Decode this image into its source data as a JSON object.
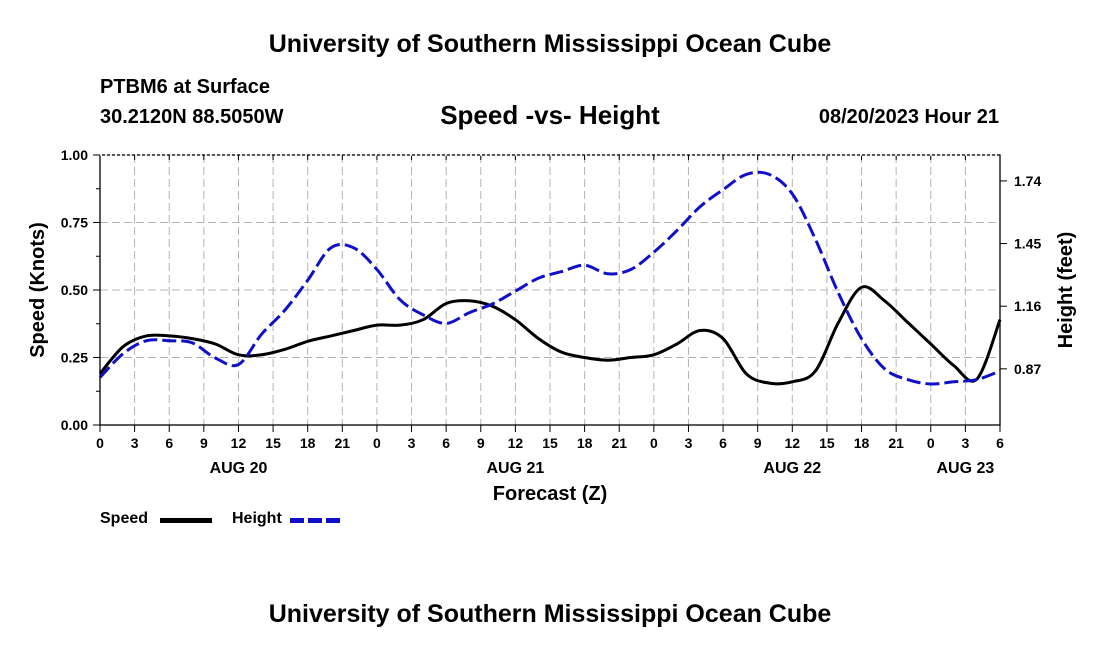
{
  "header": {
    "title": "University of Southern Mississippi Ocean Cube",
    "footer_title": "University of Southern Mississippi Ocean Cube",
    "station": "PTBM6 at Surface",
    "coords": "30.2120N  88.5050W",
    "datetime": "08/20/2023 Hour 21"
  },
  "colors": {
    "speed": "#000000",
    "height": "#1010c8",
    "grid": "#b4b4b4"
  },
  "chart_data": {
    "type": "line",
    "title": "Speed -vs- Height",
    "xlabel": "Forecast (Z)",
    "ylabel": "Speed (Knots)",
    "y2label": "Height (feet)",
    "x_unit": "hours from AUG 20 00Z",
    "xlim": [
      0,
      78
    ],
    "ylim": [
      0,
      1.0
    ],
    "y2lim": [
      0.61,
      1.86
    ],
    "yticks": [
      "0.00",
      "0.25",
      "0.50",
      "0.75",
      "1.00"
    ],
    "y2ticks": [
      "0.87",
      "1.16",
      "1.45",
      "1.74"
    ],
    "y2tick_values": [
      0.87,
      1.16,
      1.45,
      1.74
    ],
    "xtick_labels": [
      "0",
      "3",
      "6",
      "9",
      "12",
      "15",
      "18",
      "21",
      "0",
      "3",
      "6",
      "9",
      "12",
      "15",
      "18",
      "21",
      "0",
      "3",
      "6",
      "9",
      "12",
      "15",
      "18",
      "21",
      "0",
      "3",
      "6"
    ],
    "day_labels": [
      {
        "label": "AUG 20",
        "x": 12
      },
      {
        "label": "AUG 21",
        "x": 36
      },
      {
        "label": "AUG 22",
        "x": 60
      },
      {
        "label": "AUG 23",
        "x": 75
      }
    ],
    "series": [
      {
        "name": "Speed",
        "axis": "left",
        "x": [
          0,
          2,
          4,
          6,
          8,
          10,
          12,
          14,
          16,
          18,
          20,
          22,
          24,
          26,
          28,
          30,
          32,
          34,
          36,
          38,
          40,
          42,
          44,
          46,
          48,
          50,
          52,
          54,
          56,
          58,
          60,
          62,
          64,
          66,
          68,
          70,
          72,
          74,
          76,
          78
        ],
        "values": [
          0.19,
          0.29,
          0.33,
          0.33,
          0.32,
          0.3,
          0.26,
          0.26,
          0.28,
          0.31,
          0.33,
          0.35,
          0.37,
          0.37,
          0.39,
          0.45,
          0.46,
          0.44,
          0.39,
          0.32,
          0.27,
          0.25,
          0.24,
          0.25,
          0.26,
          0.3,
          0.35,
          0.32,
          0.19,
          0.155,
          0.16,
          0.2,
          0.38,
          0.51,
          0.46,
          0.38,
          0.3,
          0.22,
          0.17,
          0.39
        ]
      },
      {
        "name": "Height",
        "axis": "right",
        "x": [
          0,
          2,
          4,
          6,
          8,
          10,
          12,
          14,
          16,
          18,
          20,
          22,
          24,
          26,
          28,
          30,
          32,
          34,
          36,
          38,
          40,
          42,
          44,
          46,
          48,
          50,
          52,
          54,
          56,
          58,
          60,
          62,
          64,
          66,
          68,
          70,
          72,
          74,
          76,
          78
        ],
        "values": [
          0.83,
          0.94,
          1.0,
          1.0,
          0.99,
          0.92,
          0.89,
          1.03,
          1.14,
          1.28,
          1.43,
          1.43,
          1.33,
          1.19,
          1.12,
          1.08,
          1.13,
          1.17,
          1.23,
          1.29,
          1.32,
          1.35,
          1.31,
          1.33,
          1.41,
          1.51,
          1.62,
          1.7,
          1.77,
          1.77,
          1.68,
          1.47,
          1.22,
          1.01,
          0.87,
          0.82,
          0.8,
          0.81,
          0.82,
          0.86
        ]
      }
    ],
    "legend": [
      {
        "label": "Speed",
        "style": "solid"
      },
      {
        "label": "Height",
        "style": "dashed"
      }
    ]
  }
}
